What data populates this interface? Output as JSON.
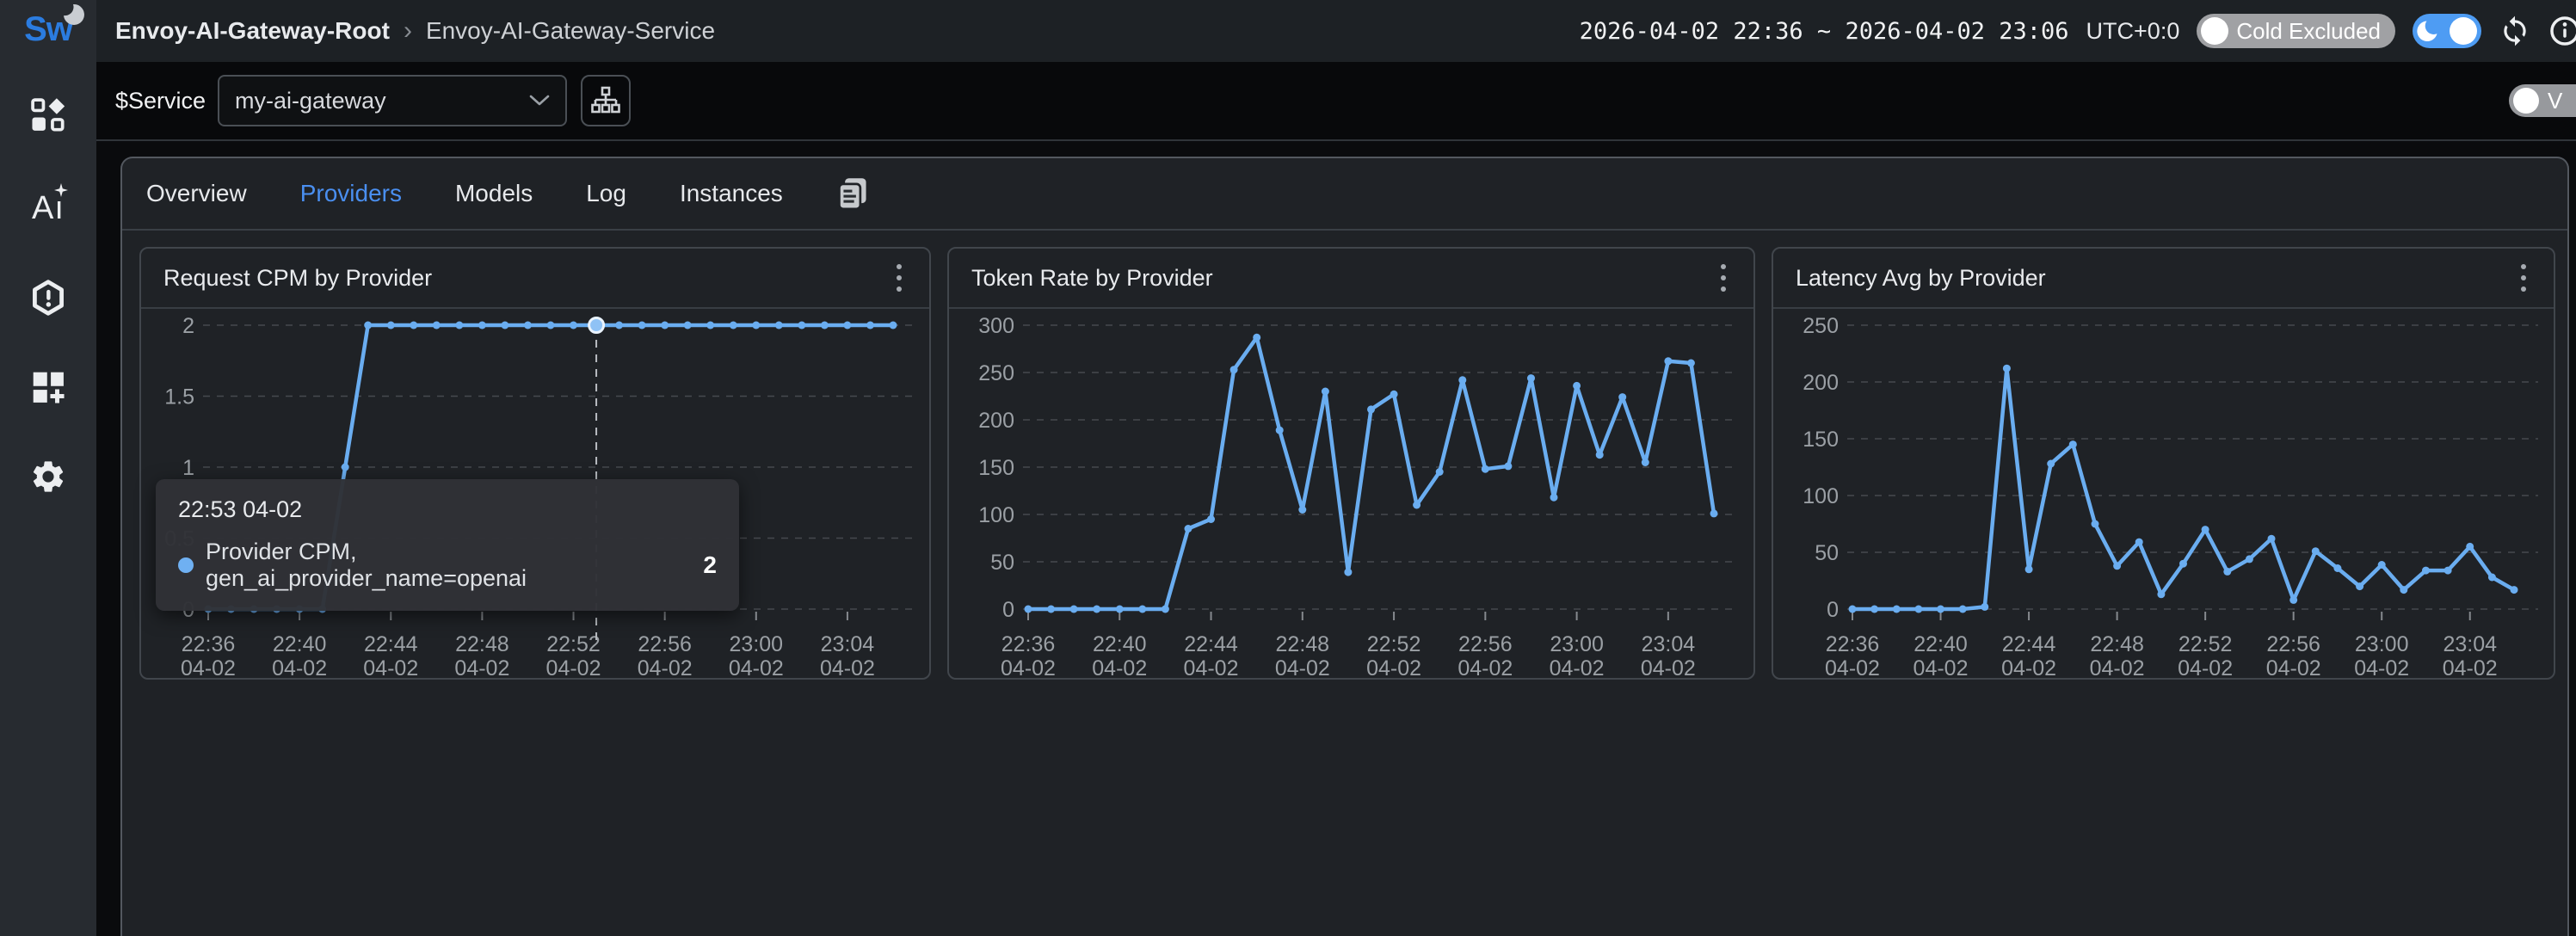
{
  "header": {
    "breadcrumb_root": "Envoy-AI-Gateway-Root",
    "breadcrumb_separator": "›",
    "breadcrumb_service": "Envoy-AI-Gateway-Service",
    "time_range": "2026-04-02 22:36 ~ 2026-04-02 23:06",
    "utc_label": "UTC+0:0",
    "cold_toggle_label": "Cold Excluded"
  },
  "filter_bar": {
    "service_label": "$Service",
    "service_value": "my-ai-gateway",
    "right_toggle_label": "V"
  },
  "tabs": [
    {
      "label": "Overview",
      "active": false
    },
    {
      "label": "Providers",
      "active": true
    },
    {
      "label": "Models",
      "active": false
    },
    {
      "label": "Log",
      "active": false
    },
    {
      "label": "Instances",
      "active": false
    }
  ],
  "colors": {
    "accent_blue": "#4a8ff0",
    "line_blue": "#6aadf0",
    "toggle_blue": "#4e9cf3",
    "logo_blue": "#2b7ce0"
  },
  "chart_data": [
    {
      "type": "line",
      "title": "Request CPM by Provider",
      "x": [
        "22:36",
        "22:37",
        "22:38",
        "22:39",
        "22:40",
        "22:41",
        "22:42",
        "22:43",
        "22:44",
        "22:45",
        "22:46",
        "22:47",
        "22:48",
        "22:49",
        "22:50",
        "22:51",
        "22:52",
        "22:53",
        "22:54",
        "22:55",
        "22:56",
        "22:57",
        "22:58",
        "22:59",
        "23:00",
        "23:01",
        "23:02",
        "23:03",
        "23:04",
        "23:05",
        "23:06"
      ],
      "x_date": "04-02",
      "x_tick_every": 4,
      "series": [
        {
          "name": "Provider CPM, gen_ai_provider_name=openai",
          "values": [
            0,
            0,
            0,
            0,
            0,
            0,
            1,
            2,
            2,
            2,
            2,
            2,
            2,
            2,
            2,
            2,
            2,
            2,
            2,
            2,
            2,
            2,
            2,
            2,
            2,
            2,
            2,
            2,
            2,
            2,
            2
          ]
        }
      ],
      "ylim": [
        0,
        2
      ],
      "yticks": [
        0,
        0.5,
        1,
        1.5,
        2
      ],
      "grid": "dashed",
      "hover": {
        "index": 17,
        "title": "22:53 04-02",
        "label": "Provider CPM, gen_ai_provider_name=openai",
        "value": "2"
      }
    },
    {
      "type": "line",
      "title": "Token Rate by Provider",
      "x": [
        "22:36",
        "22:37",
        "22:38",
        "22:39",
        "22:40",
        "22:41",
        "22:42",
        "22:43",
        "22:44",
        "22:45",
        "22:46",
        "22:47",
        "22:48",
        "22:49",
        "22:50",
        "22:51",
        "22:52",
        "22:53",
        "22:54",
        "22:55",
        "22:56",
        "22:57",
        "22:58",
        "22:59",
        "23:00",
        "23:01",
        "23:02",
        "23:03",
        "23:04",
        "23:05",
        "23:06"
      ],
      "x_date": "04-02",
      "x_tick_every": 4,
      "series": [
        {
          "name": "",
          "values": [
            0,
            0,
            0,
            0,
            0,
            0,
            0,
            85,
            95,
            253,
            287,
            189,
            105,
            230,
            39,
            211,
            227,
            110,
            145,
            242,
            148,
            151,
            244,
            118,
            236,
            163,
            224,
            155,
            262,
            260,
            101
          ]
        }
      ],
      "ylim": [
        0,
        300
      ],
      "yticks": [
        0,
        50,
        100,
        150,
        200,
        250,
        300
      ],
      "grid": "dashed"
    },
    {
      "type": "line",
      "title": "Latency Avg by Provider",
      "x": [
        "22:36",
        "22:37",
        "22:38",
        "22:39",
        "22:40",
        "22:41",
        "22:42",
        "22:43",
        "22:44",
        "22:45",
        "22:46",
        "22:47",
        "22:48",
        "22:49",
        "22:50",
        "22:51",
        "22:52",
        "22:53",
        "22:54",
        "22:55",
        "22:56",
        "22:57",
        "22:58",
        "22:59",
        "23:00",
        "23:01",
        "23:02",
        "23:03",
        "23:04",
        "23:05",
        "23:06"
      ],
      "x_date": "04-02",
      "x_tick_every": 4,
      "series": [
        {
          "name": "",
          "values": [
            0,
            0,
            0,
            0,
            0,
            0,
            2,
            212,
            35,
            128,
            145,
            75,
            38,
            59,
            13,
            40,
            70,
            33,
            44,
            62,
            8,
            51,
            36,
            20,
            39,
            17,
            34,
            34,
            55,
            28,
            17
          ]
        }
      ],
      "ylim": [
        0,
        250
      ],
      "yticks": [
        0,
        50,
        100,
        150,
        200,
        250
      ],
      "grid": "dashed"
    }
  ]
}
